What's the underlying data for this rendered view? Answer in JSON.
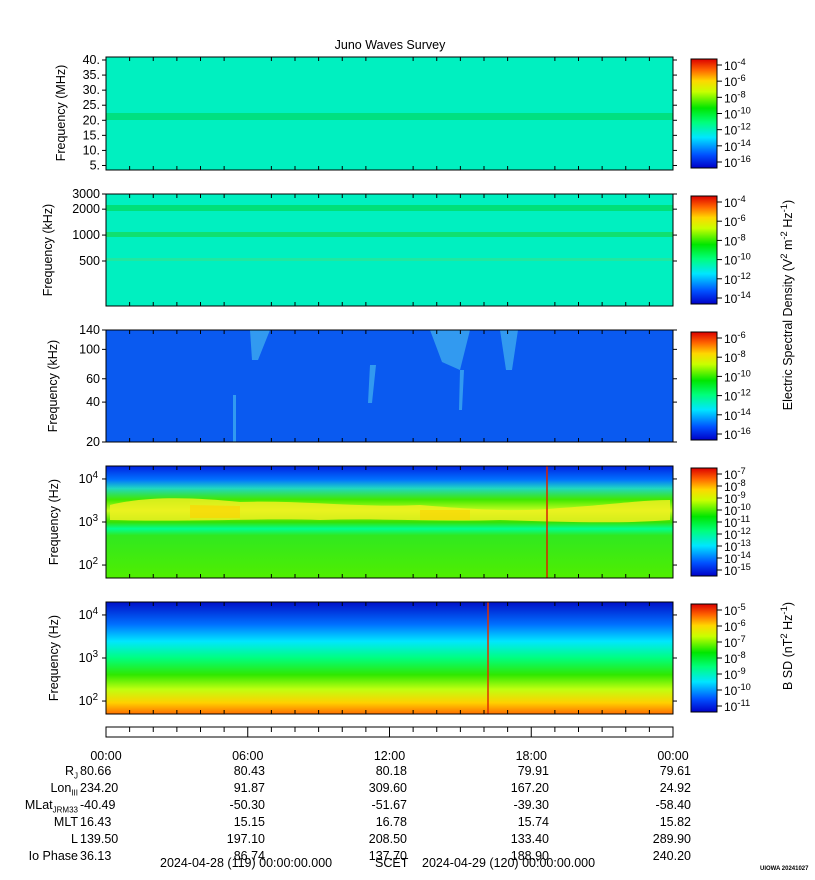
{
  "title": "Juno Waves Survey",
  "panels": [
    {
      "ylabel": "Frequency (MHz)",
      "yticks": [
        {
          "label": "40.",
          "v": 40
        },
        {
          "label": "35.",
          "v": 35
        },
        {
          "label": "30.",
          "v": 30
        },
        {
          "label": "25.",
          "v": 25
        },
        {
          "label": "20.",
          "v": 20
        },
        {
          "label": "15.",
          "v": 15
        },
        {
          "label": "10.",
          "v": 10
        },
        {
          "label": "5.",
          "v": 5
        }
      ],
      "cbar_ticks": [
        "10-4",
        "10-6",
        "10-8",
        "10-10",
        "10-12",
        "10-14",
        "10-16"
      ]
    },
    {
      "ylabel": "Frequency (kHz)",
      "yticks": [
        {
          "label": "3000",
          "v": 3000
        },
        {
          "label": "2000",
          "v": 2000
        },
        {
          "label": "1000",
          "v": 1000
        },
        {
          "label": "500",
          "v": 500
        }
      ],
      "cbar_ticks": [
        "10-4",
        "10-6",
        "10-8",
        "10-10",
        "10-12",
        "10-14"
      ]
    },
    {
      "ylabel": "Frequency (kHz)",
      "yticks": [
        {
          "label": "140",
          "v": 140
        },
        {
          "label": "100",
          "v": 100
        },
        {
          "label": "60",
          "v": 60
        },
        {
          "label": "40",
          "v": 40
        },
        {
          "label": "20",
          "v": 20
        }
      ],
      "cbar_ticks": [
        "10-6",
        "10-8",
        "10-10",
        "10-12",
        "10-14",
        "10-16"
      ]
    },
    {
      "ylabel": "Frequency (Hz)",
      "yticks": [
        {
          "label": "10^4",
          "v": 10000
        },
        {
          "label": "10^3",
          "v": 1000
        },
        {
          "label": "10^2",
          "v": 100
        }
      ],
      "cbar_ticks": [
        "10-7",
        "10-8",
        "10-9",
        "10-10",
        "10-11",
        "10-12",
        "10-13",
        "10-14",
        "10-15"
      ]
    },
    {
      "ylabel": "Frequency (Hz)",
      "yticks": [
        {
          "label": "10^4",
          "v": 10000
        },
        {
          "label": "10^3",
          "v": 1000
        },
        {
          "label": "10^2",
          "v": 100
        }
      ],
      "cbar_ticks": [
        "10-5",
        "10-6",
        "10-7",
        "10-8",
        "10-9",
        "10-10",
        "10-11"
      ]
    }
  ],
  "colorbar_labels": {
    "electric": "Electric Spectral Density (V2 m-2 Hz-1)",
    "magnetic": "B SD (nT2 Hz-1)"
  },
  "time_ticks": [
    "00:00",
    "06:00",
    "12:00",
    "18:00",
    "00:00"
  ],
  "ephemeris": [
    {
      "name": "RJ",
      "values": [
        "80.66",
        "80.43",
        "80.18",
        "79.91",
        "79.61"
      ]
    },
    {
      "name": "LonIII",
      "values": [
        "234.20",
        "91.87",
        "309.60",
        "167.20",
        "24.92"
      ]
    },
    {
      "name": "MLatJRM33",
      "values": [
        "-40.49",
        "-50.30",
        "-51.67",
        "-39.30",
        "-58.40"
      ]
    },
    {
      "name": "MLT",
      "values": [
        "16.43",
        "15.15",
        "16.78",
        "15.74",
        "15.82"
      ]
    },
    {
      "name": "L",
      "values": [
        "139.50",
        "197.10",
        "208.50",
        "133.40",
        "289.90"
      ]
    },
    {
      "name": "Io Phase",
      "values": [
        "36.13",
        "86.74",
        "137.70",
        "188.90",
        "240.20"
      ]
    }
  ],
  "footer": {
    "start": "2024-04-28 (119) 00:00:00.000",
    "scet": "SCET",
    "end": "2024-04-29 (120) 00:00:00.000",
    "stamp": "UIOWA 20241027"
  },
  "chart_data": {
    "type": "heatmap",
    "title": "Juno Waves Survey",
    "x_range": [
      "2024-04-28 00:00",
      "2024-04-29 00:00"
    ],
    "x_ticks": [
      "00:00",
      "06:00",
      "12:00",
      "18:00",
      "00:00"
    ],
    "panels": [
      {
        "ylabel": "Frequency (MHz)",
        "ylim": [
          3.5,
          41
        ],
        "yscale": "linear",
        "colorbar_range": [
          "1e-17",
          "1e-4"
        ],
        "features": "uniform cyan background with a green band near 21 MHz"
      },
      {
        "ylabel": "Frequency (kHz)",
        "ylim": [
          150,
          3000
        ],
        "yscale": "log",
        "colorbar_range": [
          "1e-15",
          "1e-3"
        ],
        "features": "green bands near 2000 kHz and 1000 kHz"
      },
      {
        "ylabel": "Frequency (kHz)",
        "ylim": [
          20,
          140
        ],
        "yscale": "log",
        "colorbar_range": [
          "1e-17",
          "1e-6"
        ],
        "features": "mostly blue with faint cyan bursts"
      },
      {
        "ylabel": "Frequency (Hz)",
        "ylim": [
          50,
          20000
        ],
        "yscale": "log",
        "colorbar_range": [
          "1e-15",
          "1e-7"
        ],
        "features": "green/yellow emission band near 1-2 kHz"
      },
      {
        "ylabel": "Frequency (Hz)",
        "ylim": [
          50,
          20000
        ],
        "yscale": "log",
        "colorbar_range": [
          "1e-11",
          "1e-4"
        ],
        "colorbar": "B SD",
        "features": "orange/yellow at low frequency, blue at high frequency"
      }
    ],
    "colormap": [
      "#0000c8",
      "#0064ff",
      "#00e6ff",
      "#00ff7a",
      "#00e600",
      "#c8ff00",
      "#ffd700",
      "#ff6400",
      "#dc0000"
    ]
  }
}
